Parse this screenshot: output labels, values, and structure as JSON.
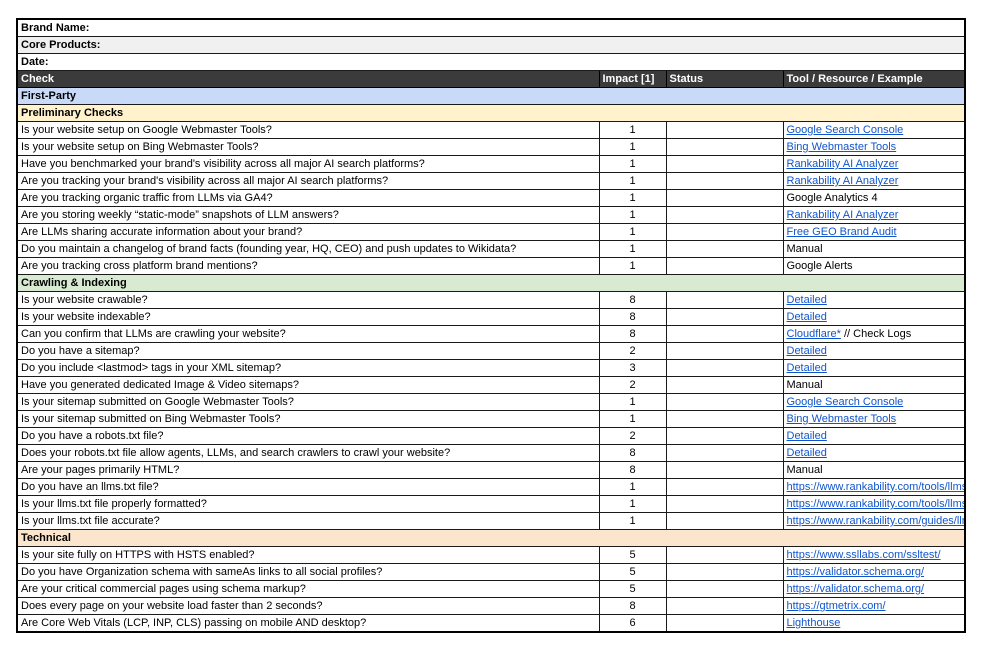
{
  "info_rows": [
    {
      "label": "Brand Name:"
    },
    {
      "label": "Core Products:"
    },
    {
      "label": "Date:"
    }
  ],
  "header": {
    "check": "Check",
    "impact": "Impact [1]",
    "status": "Status",
    "tool": "Tool / Resource / Example"
  },
  "colors": {
    "header_bg": "#3b3b3b",
    "header_text": "#ffffff",
    "info_alt_bg": "#f0f0f0",
    "link": "#1155cc",
    "first_party": "#c9daf8",
    "preliminary_checks": "#fff2cc",
    "crawling_indexing": "#d9ead3",
    "technical": "#fce5cd"
  },
  "sections": [
    {
      "title": "First-Party",
      "color": "#c9daf8",
      "rows": []
    },
    {
      "title": "Preliminary Checks",
      "color": "#fff2cc",
      "rows": [
        {
          "check": "Is your website setup on Google Webmaster Tools?",
          "impact": "1",
          "status": "",
          "tool": {
            "text": "Google Search Console",
            "link": true
          }
        },
        {
          "check": "Is your website setup on Bing Webmaster Tools?",
          "impact": "1",
          "status": "",
          "tool": {
            "text": "Bing Webmaster Tools",
            "link": true
          }
        },
        {
          "check": "Have you benchmarked your brand's visibility across all major AI search platforms?",
          "impact": "1",
          "status": "",
          "tool": {
            "text": "Rankability AI Analyzer",
            "link": true
          }
        },
        {
          "check": "Are you tracking your brand's visibility across all major AI search platforms?",
          "impact": "1",
          "status": "",
          "tool": {
            "text": "Rankability AI Analyzer",
            "link": true
          }
        },
        {
          "check": "Are you tracking organic traffic from LLMs via GA4?",
          "impact": "1",
          "status": "",
          "tool": {
            "text": "Google Analytics 4",
            "link": false
          }
        },
        {
          "check": "Are you storing weekly “static-mode” snapshots of LLM answers?",
          "impact": "1",
          "status": "",
          "tool": {
            "text": "Rankability AI Analyzer",
            "link": true
          }
        },
        {
          "check": "Are LLMs sharing accurate information about your brand?",
          "impact": "1",
          "status": "",
          "tool": {
            "text": "Free GEO Brand Audit",
            "link": true
          }
        },
        {
          "check": "Do you maintain a changelog of brand facts (founding year, HQ, CEO) and push updates to Wikidata?",
          "impact": "1",
          "status": "",
          "tool": {
            "text": "Manual",
            "link": false
          }
        },
        {
          "check": "Are you tracking cross platform brand mentions?",
          "impact": "1",
          "status": "",
          "tool": {
            "text": "Google Alerts",
            "link": false
          }
        }
      ]
    },
    {
      "title": "Crawling & Indexing",
      "color": "#d9ead3",
      "rows": [
        {
          "check": "Is your website crawable?",
          "impact": "8",
          "status": "",
          "tool": {
            "text": "Detailed",
            "link": true
          }
        },
        {
          "check": "Is your website indexable?",
          "impact": "8",
          "status": "",
          "tool": {
            "text": "Detailed",
            "link": true
          }
        },
        {
          "check": "Can you confirm that LLMs are crawling your website?",
          "impact": "8",
          "status": "",
          "tool": {
            "text": "Cloudflare*",
            "link": true,
            "suffix": " // Check Logs"
          }
        },
        {
          "check": "Do you have a sitemap?",
          "impact": "2",
          "status": "",
          "tool": {
            "text": "Detailed",
            "link": true
          }
        },
        {
          "check": "Do you include <lastmod> tags in your XML sitemap?",
          "impact": "3",
          "status": "",
          "tool": {
            "text": "Detailed",
            "link": true
          }
        },
        {
          "check": "Have you generated dedicated Image & Video sitemaps?",
          "impact": "2",
          "status": "",
          "tool": {
            "text": "Manual",
            "link": false
          }
        },
        {
          "check": "Is your sitemap submitted on Google Webmaster Tools?",
          "impact": "1",
          "status": "",
          "tool": {
            "text": "Google Search Console",
            "link": true
          }
        },
        {
          "check": "Is your sitemap submitted on Bing Webmaster Tools?",
          "impact": "1",
          "status": "",
          "tool": {
            "text": "Bing Webmaster Tools",
            "link": true
          }
        },
        {
          "check": "Do you have a robots.txt file?",
          "impact": "2",
          "status": "",
          "tool": {
            "text": "Detailed",
            "link": true
          }
        },
        {
          "check": "Does your robots.txt file allow agents, LLMs, and search crawlers to crawl your website?",
          "impact": "8",
          "status": "",
          "tool": {
            "text": "Detailed",
            "link": true
          }
        },
        {
          "check": "Are your pages primarily HTML?",
          "impact": "8",
          "status": "",
          "tool": {
            "text": "Manual",
            "link": false
          }
        },
        {
          "check": "Do you have an llms.txt file?",
          "impact": "1",
          "status": "",
          "tool": {
            "text": "https://www.rankability.com/tools/llms-ge",
            "link": true
          }
        },
        {
          "check": "Is your llms.txt file properly formatted?",
          "impact": "1",
          "status": "",
          "tool": {
            "text": "https://www.rankability.com/tools/llms-tx",
            "link": true
          }
        },
        {
          "check": "Is your llms.txt file accurate?",
          "impact": "1",
          "status": "",
          "tool": {
            "text": "https://www.rankability.com/guides/llms",
            "link": true
          }
        }
      ]
    },
    {
      "title": "Technical",
      "color": "#fce5cd",
      "rows": [
        {
          "check": "Is your site fully on HTTPS with HSTS enabled?",
          "impact": "5",
          "status": "",
          "tool": {
            "text": "https://www.ssllabs.com/ssltest/",
            "link": true
          }
        },
        {
          "check": "Do you have Organization schema with sameAs links to all social profiles?",
          "impact": "5",
          "status": "",
          "tool": {
            "text": "https://validator.schema.org/",
            "link": true
          }
        },
        {
          "check": "Are your critical commercial pages using schema markup?",
          "impact": "5",
          "status": "",
          "tool": {
            "text": "https://validator.schema.org/",
            "link": true
          }
        },
        {
          "check": "Does every page on your website load faster than 2 seconds?",
          "impact": "8",
          "status": "",
          "tool": {
            "text": "https://gtmetrix.com/",
            "link": true
          }
        },
        {
          "check": "Are Core Web Vitals (LCP, INP, CLS) passing on mobile AND desktop?",
          "impact": "6",
          "status": "",
          "tool": {
            "text": "Lighthouse",
            "link": true
          }
        }
      ]
    }
  ]
}
